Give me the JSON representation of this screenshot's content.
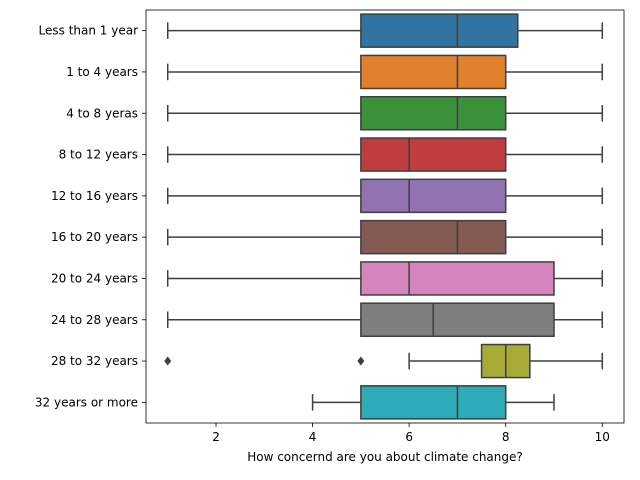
{
  "chart_data": {
    "type": "box",
    "orientation": "horizontal",
    "title": "",
    "xlabel": "How concernd are you about climate change?",
    "ylabel": "",
    "xlim": [
      0.55,
      10.45
    ],
    "xticks": [
      2,
      4,
      6,
      8,
      10
    ],
    "grid": false,
    "categories": [
      "Less than 1 year",
      "1 to 4 years",
      "4 to 8 yeras",
      "8 to 12 years",
      "12 to 16 years",
      "16 to 20 years",
      "20 to 24 years",
      "24 to 28 years",
      "28 to 32 years",
      "32 years or more"
    ],
    "boxes": [
      {
        "whisker_low": 1,
        "q1": 5,
        "median": 7,
        "q3": 8.25,
        "whisker_high": 10,
        "outliers": [],
        "color": "#3274a1"
      },
      {
        "whisker_low": 1,
        "q1": 5,
        "median": 7,
        "q3": 8,
        "whisker_high": 10,
        "outliers": [],
        "color": "#e1812c"
      },
      {
        "whisker_low": 1,
        "q1": 5,
        "median": 7,
        "q3": 8,
        "whisker_high": 10,
        "outliers": [],
        "color": "#3a923a"
      },
      {
        "whisker_low": 1,
        "q1": 5,
        "median": 6,
        "q3": 8,
        "whisker_high": 10,
        "outliers": [],
        "color": "#c03d3e"
      },
      {
        "whisker_low": 1,
        "q1": 5,
        "median": 6,
        "q3": 8,
        "whisker_high": 10,
        "outliers": [],
        "color": "#9372b2"
      },
      {
        "whisker_low": 1,
        "q1": 5,
        "median": 7,
        "q3": 8,
        "whisker_high": 10,
        "outliers": [],
        "color": "#845b53"
      },
      {
        "whisker_low": 1,
        "q1": 5,
        "median": 6,
        "q3": 9,
        "whisker_high": 10,
        "outliers": [],
        "color": "#d684bd"
      },
      {
        "whisker_low": 1,
        "q1": 5,
        "median": 6.5,
        "q3": 9,
        "whisker_high": 10,
        "outliers": [],
        "color": "#7f7f7f"
      },
      {
        "whisker_low": 6,
        "q1": 7.5,
        "median": 8,
        "q3": 8.5,
        "whisker_high": 10,
        "outliers": [
          1,
          5
        ],
        "color": "#a9aa35"
      },
      {
        "whisker_low": 4,
        "q1": 5,
        "median": 7,
        "q3": 8,
        "whisker_high": 9,
        "outliers": [],
        "color": "#2eabb8"
      }
    ]
  }
}
